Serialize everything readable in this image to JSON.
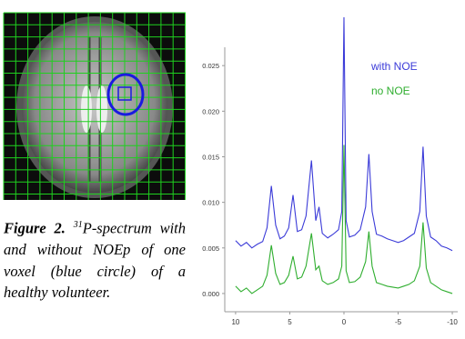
{
  "caption": {
    "label": "Figure 2.",
    "superscript": "31",
    "text": "P-spectrum with and without NOEp of one voxel (blue circle) of a healthy volunteer."
  },
  "chart_data": {
    "type": "line",
    "x": [
      10,
      9.5,
      9,
      8.5,
      8,
      7.5,
      7.1,
      6.7,
      6.3,
      5.9,
      5.5,
      5.1,
      4.7,
      4.3,
      3.9,
      3.5,
      3.0,
      2.6,
      2.3,
      2.0,
      1.5,
      1.0,
      0.5,
      0.2,
      0,
      -0.2,
      -0.5,
      -1.0,
      -1.5,
      -2.0,
      -2.3,
      -2.6,
      -3.0,
      -3.5,
      -4.0,
      -4.5,
      -5.0,
      -5.5,
      -6.0,
      -6.5,
      -7.0,
      -7.3,
      -7.6,
      -8.0,
      -8.5,
      -9.0,
      -9.5,
      -10
    ],
    "series": [
      {
        "name": "with NOE",
        "color": "#3b3bd8",
        "values": [
          0.0058,
          0.0052,
          0.0056,
          0.005,
          0.0054,
          0.0057,
          0.0072,
          0.0118,
          0.0075,
          0.006,
          0.0063,
          0.0072,
          0.0108,
          0.0068,
          0.007,
          0.0085,
          0.0146,
          0.008,
          0.0095,
          0.0066,
          0.0061,
          0.0065,
          0.007,
          0.009,
          0.0303,
          0.008,
          0.0062,
          0.0064,
          0.007,
          0.0095,
          0.0153,
          0.009,
          0.0065,
          0.0063,
          0.006,
          0.0058,
          0.0056,
          0.0058,
          0.0062,
          0.0066,
          0.009,
          0.0161,
          0.0085,
          0.0062,
          0.0058,
          0.0052,
          0.005,
          0.0047
        ]
      },
      {
        "name": "no NOE",
        "color": "#2fae2f",
        "values": [
          0.0008,
          0.0002,
          0.0006,
          0.0,
          0.0004,
          0.0008,
          0.002,
          0.0053,
          0.0022,
          0.001,
          0.0012,
          0.002,
          0.0041,
          0.0016,
          0.0018,
          0.003,
          0.0066,
          0.0026,
          0.003,
          0.0014,
          0.001,
          0.0012,
          0.0016,
          0.003,
          0.0163,
          0.0025,
          0.0012,
          0.0013,
          0.0018,
          0.0035,
          0.0068,
          0.003,
          0.0012,
          0.001,
          0.0008,
          0.0007,
          0.0006,
          0.0008,
          0.001,
          0.0014,
          0.003,
          0.0078,
          0.0028,
          0.0012,
          0.0008,
          0.0004,
          0.0002,
          0.0
        ]
      }
    ],
    "xlim": [
      11,
      -10.5
    ],
    "xticks": [
      10,
      5,
      0,
      -5,
      -10
    ],
    "ylim": [
      -0.002,
      0.031
    ],
    "yticks": [
      {
        "value": 0,
        "label": "0.000"
      },
      {
        "value": 0.005,
        "label": "0.005"
      },
      {
        "value": 0.01,
        "label": "0.010"
      },
      {
        "value": 0.015,
        "label": "0.015"
      },
      {
        "value": 0.02,
        "label": "0.020"
      },
      {
        "value": 0.025,
        "label": "0.025"
      }
    ]
  }
}
